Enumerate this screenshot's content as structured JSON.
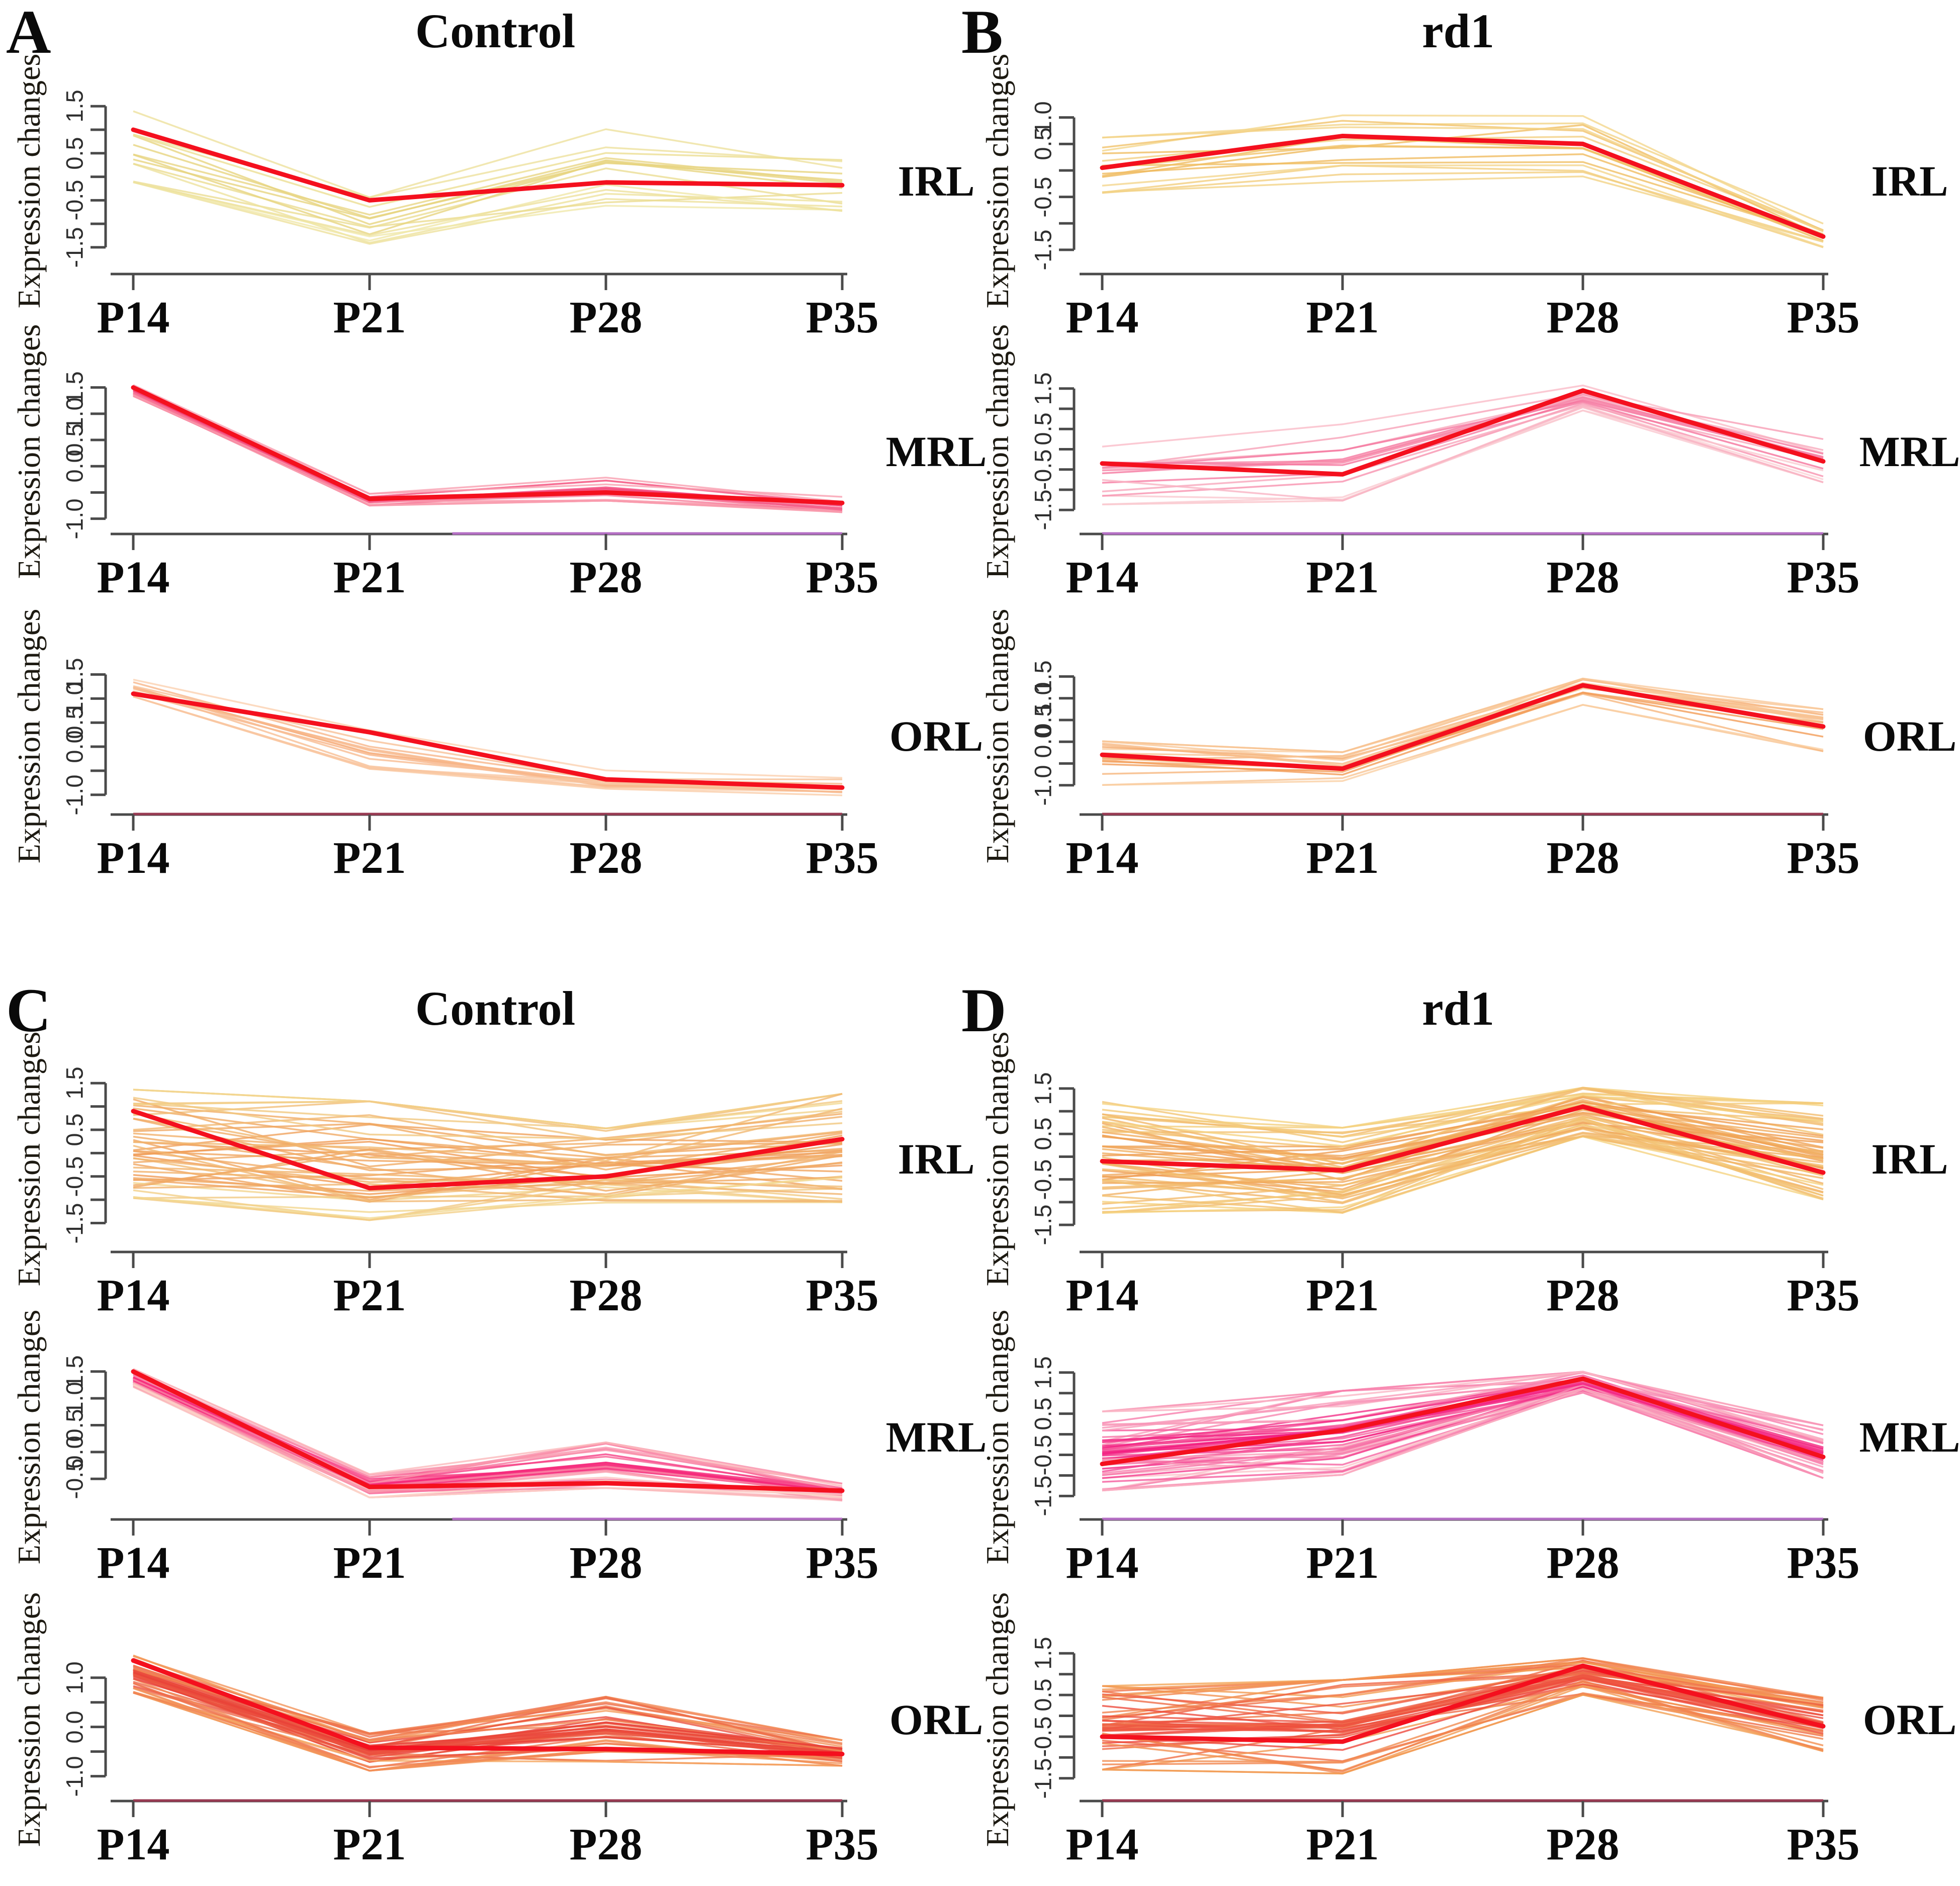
{
  "figure": {
    "ylabel": "Expression changes",
    "categories": [
      "P14",
      "P21",
      "P28",
      "P35"
    ],
    "mean_line_color": "#f4101e",
    "axis_color": "#4a4a4a",
    "purple_axis_color": "#b46fc4",
    "maroon_axis_color": "#983a52",
    "text_color": "#0a0a0a",
    "panels": [
      {
        "letter": "A",
        "title": "Control",
        "column": "left",
        "half": "top"
      },
      {
        "letter": "B",
        "title": "rd1",
        "column": "right",
        "half": "top"
      },
      {
        "letter": "C",
        "title": "Control",
        "column": "left",
        "half": "bottom"
      },
      {
        "letter": "D",
        "title": "rd1",
        "column": "right",
        "half": "bottom"
      }
    ]
  },
  "chart_data": [
    {
      "panel": "A",
      "condition": "Control",
      "cluster": "IRL",
      "type": "line",
      "x": [
        "P14",
        "P21",
        "P28",
        "P35"
      ],
      "series_note": "bold red line = cluster mean expression; thin lines = individual genes spanning envelope",
      "mean": [
        1.0,
        -0.5,
        -0.12,
        -0.18
      ],
      "envelope_min": [
        -0.35,
        -1.65,
        -0.75,
        -0.85
      ],
      "envelope_max": [
        1.5,
        -0.4,
        1.25,
        0.55
      ],
      "n_lines": 15,
      "ylim": [
        -1.8,
        1.62
      ],
      "yticks": [
        {
          "v": 1.5,
          "label": "1.5"
        },
        {
          "v": 1.0,
          "label": ""
        },
        {
          "v": 0.5,
          "label": "0.5"
        },
        {
          "v": 0.0,
          "label": ""
        },
        {
          "v": -0.5,
          "label": "-0.5"
        },
        {
          "v": -1.0,
          "label": ""
        },
        {
          "v": -1.5,
          "label": "-1.5"
        }
      ],
      "core_color": "#e7d47e",
      "edge_color": "#f1e9ae",
      "spread_exp": 1.0,
      "axis_overlay": {
        "color": null,
        "from": 0
      },
      "seed": 11
    },
    {
      "panel": "A",
      "condition": "Control",
      "cluster": "MRL",
      "type": "line",
      "x": [
        "P14",
        "P21",
        "P28",
        "P35"
      ],
      "mean": [
        1.5,
        -0.62,
        -0.5,
        -0.7
      ],
      "envelope_min": [
        1.3,
        -0.78,
        -0.7,
        -0.92
      ],
      "envelope_max": [
        1.57,
        -0.5,
        -0.15,
        -0.55
      ],
      "n_lines": 20,
      "ylim": [
        -1.08,
        1.65
      ],
      "yticks": [
        {
          "v": 1.5,
          "label": "1.5"
        },
        {
          "v": 1.0,
          "label": "1.0"
        },
        {
          "v": 0.5,
          "label": "0.5"
        },
        {
          "v": 0.0,
          "label": "0.0"
        },
        {
          "v": -0.5,
          "label": ""
        },
        {
          "v": -1.0,
          "label": "-1.0"
        }
      ],
      "core_color": "#f23a72",
      "edge_color": "#faacb8",
      "spread_exp": 1.6,
      "axis_overlay": {
        "color": "#b46fc4",
        "from": 0.45
      },
      "seed": 12
    },
    {
      "panel": "A",
      "condition": "Control",
      "cluster": "ORL",
      "type": "line",
      "x": [
        "P14",
        "P21",
        "P28",
        "P35"
      ],
      "mean": [
        1.1,
        0.3,
        -0.68,
        -0.85
      ],
      "envelope_min": [
        1.02,
        -0.62,
        -0.92,
        -1.05
      ],
      "envelope_max": [
        1.5,
        0.45,
        -0.45,
        -0.6
      ],
      "n_lines": 14,
      "ylim": [
        -1.18,
        1.62
      ],
      "yticks": [
        {
          "v": 1.5,
          "label": "1.5"
        },
        {
          "v": 1.0,
          "label": "1.0"
        },
        {
          "v": 0.5,
          "label": "0.5"
        },
        {
          "v": 0.0,
          "label": "0.0"
        },
        {
          "v": -0.5,
          "label": ""
        },
        {
          "v": -1.0,
          "label": "-1.0"
        }
      ],
      "core_color": "#f6ae7e",
      "edge_color": "#fbd4b4",
      "spread_exp": 1.2,
      "axis_overlay": {
        "color": "#983a52",
        "from": 0
      },
      "seed": 13
    },
    {
      "panel": "B",
      "condition": "rd1",
      "cluster": "IRL",
      "type": "line",
      "x": [
        "P14",
        "P21",
        "P28",
        "P35"
      ],
      "mean": [
        0.05,
        0.65,
        0.5,
        -1.25
      ],
      "envelope_min": [
        -0.65,
        -0.4,
        -0.25,
        -1.5
      ],
      "envelope_max": [
        0.75,
        1.2,
        1.15,
        -0.95
      ],
      "n_lines": 15,
      "ylim": [
        -1.72,
        1.32
      ],
      "yticks": [
        {
          "v": 1.0,
          "label": "1.0"
        },
        {
          "v": 0.5,
          "label": "0.5"
        },
        {
          "v": 0.0,
          "label": ""
        },
        {
          "v": -0.5,
          "label": "-0.5"
        },
        {
          "v": -1.0,
          "label": ""
        },
        {
          "v": -1.5,
          "label": "-1.5"
        }
      ],
      "core_color": "#efb95a",
      "edge_color": "#f5de9a",
      "spread_exp": 1.0,
      "axis_overlay": {
        "color": null,
        "from": 0
      },
      "seed": 21
    },
    {
      "panel": "B",
      "condition": "rd1",
      "cluster": "MRL",
      "type": "line",
      "x": [
        "P14",
        "P21",
        "P28",
        "P35"
      ],
      "mean": [
        -0.35,
        -0.62,
        1.45,
        -0.3
      ],
      "envelope_min": [
        -1.6,
        -1.45,
        0.85,
        -0.95
      ],
      "envelope_max": [
        0.5,
        0.9,
        1.62,
        0.55
      ],
      "n_lines": 17,
      "ylim": [
        -1.82,
        1.72
      ],
      "yticks": [
        {
          "v": 1.5,
          "label": "1.5"
        },
        {
          "v": 1.0,
          "label": ""
        },
        {
          "v": 0.5,
          "label": "0.5"
        },
        {
          "v": 0.0,
          "label": ""
        },
        {
          "v": -0.5,
          "label": "-0.5"
        },
        {
          "v": -1.0,
          "label": ""
        },
        {
          "v": -1.5,
          "label": "-1.5"
        }
      ],
      "core_color": "#f5719b",
      "edge_color": "#fbd3d6",
      "spread_exp": 1.4,
      "axis_overlay": {
        "color": "#b46fc4",
        "from": 0
      },
      "seed": 22
    },
    {
      "panel": "B",
      "condition": "rd1",
      "cluster": "ORL",
      "type": "line",
      "x": [
        "P14",
        "P21",
        "P28",
        "P35"
      ],
      "mean": [
        -0.3,
        -0.62,
        1.3,
        0.35
      ],
      "envelope_min": [
        -1.15,
        -1.05,
        0.75,
        -0.35
      ],
      "envelope_max": [
        0.1,
        -0.15,
        1.5,
        0.85
      ],
      "n_lines": 16,
      "ylim": [
        -1.42,
        1.68
      ],
      "yticks": [
        {
          "v": 1.5,
          "label": "1.5"
        },
        {
          "v": 1.0,
          "label": "1.0"
        },
        {
          "v": 0.5,
          "label": "0.5"
        },
        {
          "v": 0.0,
          "label": "0.0"
        },
        {
          "v": -0.5,
          "label": ""
        },
        {
          "v": -1.0,
          "label": "-1.0"
        }
      ],
      "core_color": "#f29a55",
      "edge_color": "#fad0a6",
      "spread_exp": 1.3,
      "axis_overlay": {
        "color": "#983a52",
        "from": 0
      },
      "seed": 23
    },
    {
      "panel": "C",
      "condition": "Control",
      "cluster": "IRL",
      "type": "line",
      "x": [
        "P14",
        "P21",
        "P28",
        "P35"
      ],
      "mean": [
        0.9,
        -0.75,
        -0.5,
        0.3
      ],
      "envelope_min": [
        -1.35,
        -1.62,
        -1.2,
        -1.35
      ],
      "envelope_max": [
        1.5,
        1.5,
        0.75,
        1.5
      ],
      "n_lines": 48,
      "ylim": [
        -1.85,
        1.6
      ],
      "yticks": [
        {
          "v": 1.5,
          "label": "1.5"
        },
        {
          "v": 1.0,
          "label": ""
        },
        {
          "v": 0.5,
          "label": "0.5"
        },
        {
          "v": 0.0,
          "label": ""
        },
        {
          "v": -0.5,
          "label": "-0.5"
        },
        {
          "v": -1.0,
          "label": ""
        },
        {
          "v": -1.5,
          "label": "-1.5"
        }
      ],
      "core_color": "#f09a55",
      "edge_color": "#f2dc95",
      "spread_exp": 1.0,
      "axis_overlay": {
        "color": null,
        "from": 0
      },
      "seed": 31
    },
    {
      "panel": "C",
      "condition": "Control",
      "cluster": "MRL",
      "type": "line",
      "x": [
        "P14",
        "P21",
        "P28",
        "P35"
      ],
      "mean": [
        1.5,
        -0.65,
        -0.58,
        -0.72
      ],
      "envelope_min": [
        1.15,
        -0.9,
        -0.72,
        -0.95
      ],
      "envelope_max": [
        1.57,
        -0.35,
        0.35,
        -0.55
      ],
      "n_lines": 42,
      "ylim": [
        -1.05,
        1.62
      ],
      "yticks": [
        {
          "v": 1.5,
          "label": "1.5"
        },
        {
          "v": 1.0,
          "label": "1.0"
        },
        {
          "v": 0.5,
          "label": "0.5"
        },
        {
          "v": 0.0,
          "label": "0.0"
        },
        {
          "v": -0.5,
          "label": "-0.5"
        }
      ],
      "core_color": "#f52278",
      "edge_color": "#fcd8ca",
      "spread_exp": 1.7,
      "axis_overlay": {
        "color": "#b46fc4",
        "from": 0.45
      },
      "seed": 32
    },
    {
      "panel": "C",
      "condition": "Control",
      "cluster": "ORL",
      "type": "line",
      "x": [
        "P14",
        "P21",
        "P28",
        "P35"
      ],
      "mean": [
        1.35,
        -0.42,
        -0.45,
        -0.55
      ],
      "envelope_min": [
        0.55,
        -1.0,
        -0.8,
        -0.85
      ],
      "envelope_max": [
        1.5,
        -0.05,
        0.85,
        -0.2
      ],
      "n_lines": 50,
      "ylim": [
        -1.28,
        1.58
      ],
      "yticks": [
        {
          "v": 1.0,
          "label": "1.0"
        },
        {
          "v": 0.5,
          "label": ""
        },
        {
          "v": 0.0,
          "label": "0.0"
        },
        {
          "v": -0.5,
          "label": ""
        },
        {
          "v": -1.0,
          "label": "-1.0"
        }
      ],
      "core_color": "#e94038",
      "edge_color": "#f5a963",
      "spread_exp": 1.5,
      "axis_overlay": {
        "color": "#983a52",
        "from": 0
      },
      "seed": 33
    },
    {
      "panel": "D",
      "condition": "rd1",
      "cluster": "IRL",
      "type": "line",
      "x": [
        "P14",
        "P21",
        "P28",
        "P35"
      ],
      "mean": [
        -0.1,
        -0.3,
        1.1,
        -0.35
      ],
      "envelope_min": [
        -1.5,
        -1.45,
        0.3,
        -1.1
      ],
      "envelope_max": [
        1.5,
        0.85,
        1.62,
        1.5
      ],
      "n_lines": 52,
      "ylim": [
        -1.82,
        1.72
      ],
      "yticks": [
        {
          "v": 1.5,
          "label": "1.5"
        },
        {
          "v": 1.0,
          "label": ""
        },
        {
          "v": 0.5,
          "label": "0.5"
        },
        {
          "v": 0.0,
          "label": ""
        },
        {
          "v": -0.5,
          "label": "-0.5"
        },
        {
          "v": -1.0,
          "label": ""
        },
        {
          "v": -1.5,
          "label": "-1.5"
        }
      ],
      "core_color": "#ef9d52",
      "edge_color": "#f5d685",
      "spread_exp": 1.05,
      "axis_overlay": {
        "color": null,
        "from": 0
      },
      "seed": 41
    },
    {
      "panel": "D",
      "condition": "rd1",
      "cluster": "MRL",
      "type": "line",
      "x": [
        "P14",
        "P21",
        "P28",
        "P35"
      ],
      "mean": [
        -0.72,
        0.1,
        1.35,
        -0.55
      ],
      "envelope_min": [
        -1.55,
        -1.25,
        0.9,
        -1.2
      ],
      "envelope_max": [
        0.85,
        1.3,
        1.57,
        0.4
      ],
      "n_lines": 55,
      "ylim": [
        -1.8,
        1.68
      ],
      "yticks": [
        {
          "v": 1.5,
          "label": "1.5"
        },
        {
          "v": 1.0,
          "label": ""
        },
        {
          "v": 0.5,
          "label": "0.5"
        },
        {
          "v": 0.0,
          "label": ""
        },
        {
          "v": -0.5,
          "label": "-0.5"
        },
        {
          "v": -1.0,
          "label": ""
        },
        {
          "v": -1.5,
          "label": "-1.5"
        }
      ],
      "core_color": "#f2197e",
      "edge_color": "#fbc9ce",
      "spread_exp": 1.5,
      "axis_overlay": {
        "color": "#b46fc4",
        "from": 0
      },
      "seed": 42
    },
    {
      "panel": "D",
      "condition": "rd1",
      "cluster": "ORL",
      "type": "line",
      "x": [
        "P14",
        "P21",
        "P28",
        "P35"
      ],
      "mean": [
        -0.5,
        -0.62,
        1.2,
        -0.25
      ],
      "envelope_min": [
        -1.5,
        -1.6,
        0.35,
        -1.0
      ],
      "envelope_max": [
        1.0,
        1.2,
        1.45,
        0.6
      ],
      "n_lines": 48,
      "ylim": [
        -1.78,
        1.6
      ],
      "yticks": [
        {
          "v": 1.5,
          "label": "1.5"
        },
        {
          "v": 1.0,
          "label": ""
        },
        {
          "v": 0.5,
          "label": "0.5"
        },
        {
          "v": 0.0,
          "label": ""
        },
        {
          "v": -0.5,
          "label": "-0.5"
        },
        {
          "v": -1.0,
          "label": ""
        },
        {
          "v": -1.5,
          "label": "-1.5"
        }
      ],
      "core_color": "#ed443c",
      "edge_color": "#f3a657",
      "spread_exp": 1.4,
      "axis_overlay": {
        "color": "#983a52",
        "from": 0
      },
      "seed": 43
    }
  ]
}
